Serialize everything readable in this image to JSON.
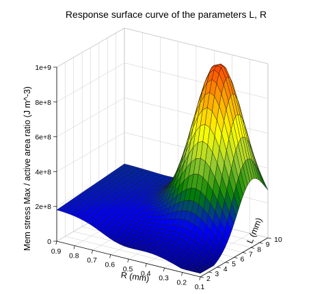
{
  "chart_data": {
    "type": "surface3d",
    "title": "Response surface curve of the parameters L, R",
    "xlabel": "R (mm)",
    "ylabel": "L (mm)",
    "zlabel": "Mem stress Max / active area ratio (J m^-3)",
    "x_ticks": [
      "0.9",
      "0.8",
      "0.7",
      "0.6",
      "0.5",
      "0.4",
      "0.3",
      "0.2",
      "0.1"
    ],
    "y_ticks": [
      "2",
      "3",
      "4",
      "5",
      "6",
      "7",
      "8",
      "9",
      "10"
    ],
    "z_ticks": [
      "0",
      "2e+8",
      "4e+8",
      "6e+8",
      "8e+8",
      "1e+9"
    ],
    "xlim": [
      0.1,
      0.9
    ],
    "ylim": [
      2,
      10
    ],
    "zlim": [
      0,
      1000000000
    ],
    "grid_resolution": [
      30,
      30
    ],
    "colormap": [
      "#00008b",
      "#0000ff",
      "#008000",
      "#9acd32",
      "#ffff00",
      "#ffa500",
      "#ff4500"
    ],
    "surface_samples": [
      {
        "R": 0.9,
        "L": 2,
        "z": 180000000
      },
      {
        "R": 0.9,
        "L": 10,
        "z": 90000000
      },
      {
        "R": 0.1,
        "L": 2,
        "z": 20000000
      },
      {
        "R": 0.1,
        "L": 10,
        "z": 300000000
      },
      {
        "R": 0.3,
        "L": 8,
        "z": 1000000000
      },
      {
        "R": 0.5,
        "L": 6,
        "z": 420000000
      }
    ]
  }
}
